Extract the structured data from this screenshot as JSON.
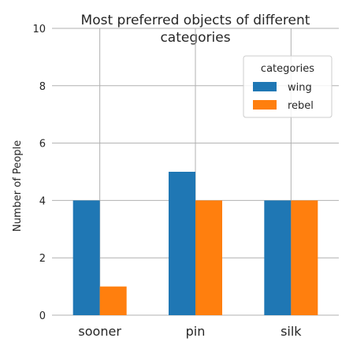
{
  "chart_data": {
    "type": "bar",
    "title": "Most preferred objects of different categories",
    "title_lines": [
      "Most preferred objects of different",
      "categories"
    ],
    "xlabel": "",
    "ylabel": "Number of People",
    "categories": [
      "sooner",
      "pin",
      "silk"
    ],
    "series": [
      {
        "name": "wing",
        "color": "#1f77b4",
        "values": [
          4,
          5,
          4
        ]
      },
      {
        "name": "rebel",
        "color": "#ff7f0e",
        "values": [
          1,
          4,
          4
        ]
      }
    ],
    "ylim": [
      0,
      10
    ],
    "yticks": [
      0,
      2,
      4,
      6,
      8,
      10
    ],
    "grid": true,
    "legend": {
      "title": "categories",
      "placement": "top-right"
    }
  }
}
